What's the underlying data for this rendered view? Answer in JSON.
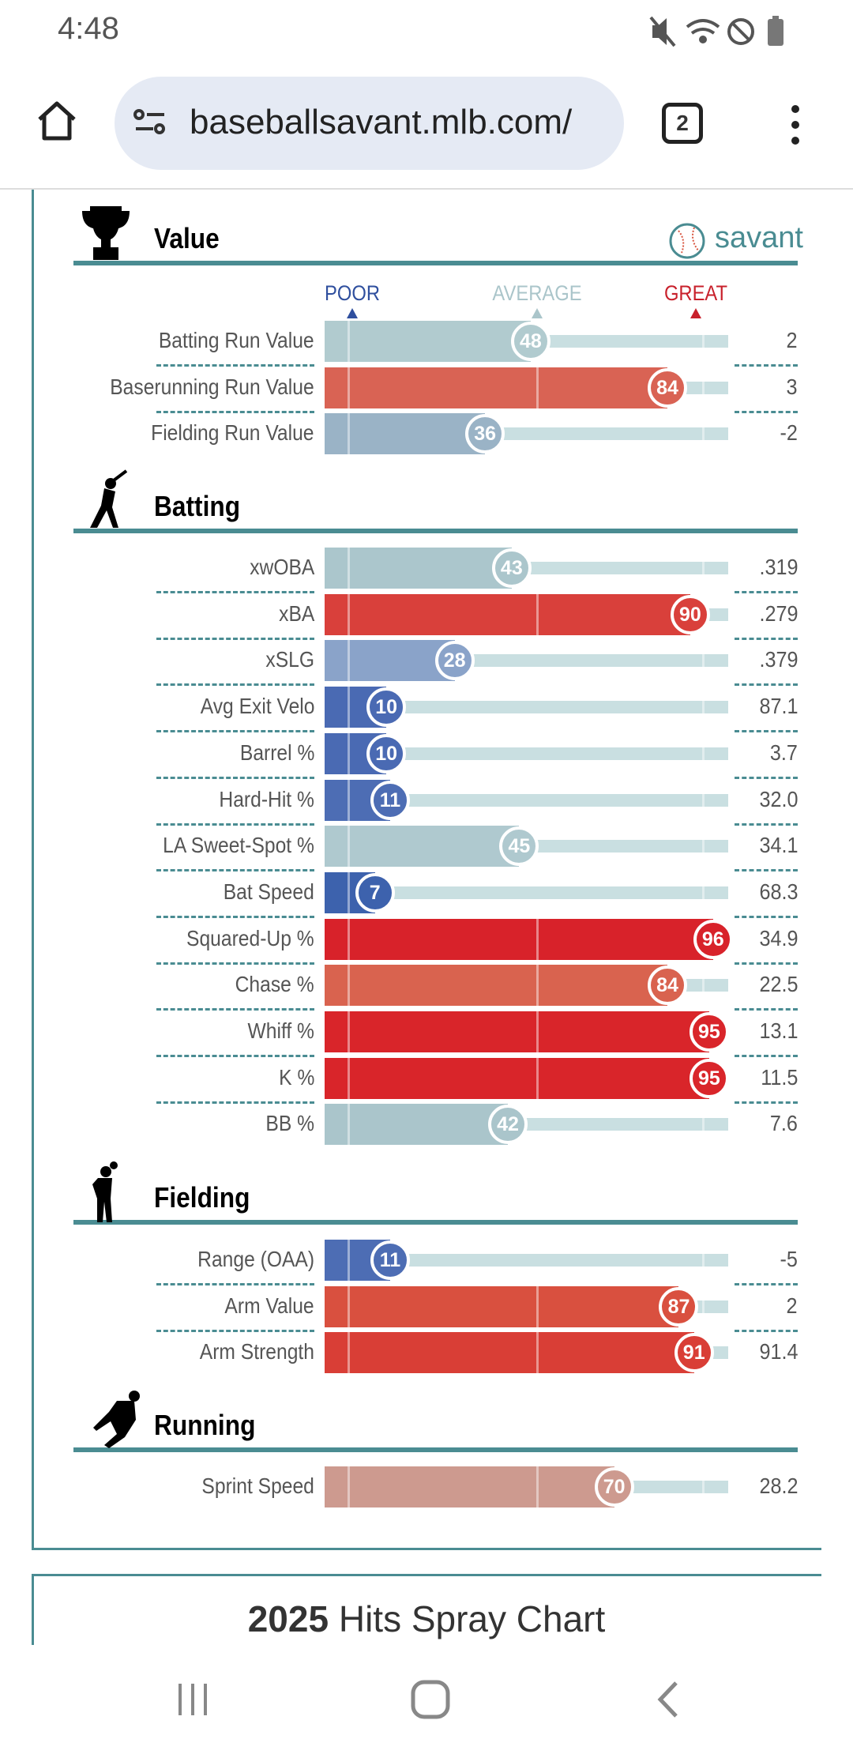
{
  "status_bar": {
    "time": "4:48",
    "icons": [
      "mute-icon",
      "wifi-icon",
      "do-not-disturb-icon",
      "battery-icon"
    ]
  },
  "browser": {
    "url": "baseballsavant.mlb.com/",
    "tab_count": "2"
  },
  "brand": {
    "name": "savant",
    "color": "#4a8c92"
  },
  "scale_labels": {
    "poor": "POOR",
    "average": "AVERAGE",
    "great": "GREAT",
    "poor_color": "#2f4f9e",
    "average_color": "#aac5ca",
    "great_color": "#c8202b"
  },
  "sections": [
    {
      "title": "Value",
      "icon": "trophy-icon",
      "metrics": [
        {
          "label": "Batting Run Value",
          "pct": 48,
          "value": "2",
          "color": "#b1cbcf"
        },
        {
          "label": "Baserunning Run Value",
          "pct": 84,
          "value": "3",
          "color": "#d96354"
        },
        {
          "label": "Fielding Run Value",
          "pct": 36,
          "value": "-2",
          "color": "#9ab3c6"
        }
      ]
    },
    {
      "title": "Batting",
      "icon": "batter-icon",
      "metrics": [
        {
          "label": "xwOBA",
          "pct": 43,
          "value": ".319",
          "color": "#abc6cc"
        },
        {
          "label": "xBA",
          "pct": 90,
          "value": ".279",
          "color": "#d9403b"
        },
        {
          "label": "xSLG",
          "pct": 28,
          "value": ".379",
          "color": "#8aa3c9"
        },
        {
          "label": "Avg Exit Velo",
          "pct": 10,
          "value": "87.1",
          "color": "#4a6ab3"
        },
        {
          "label": "Barrel %",
          "pct": 10,
          "value": "3.7",
          "color": "#4a6ab3"
        },
        {
          "label": "Hard-Hit %",
          "pct": 11,
          "value": "32.0",
          "color": "#4d6db4"
        },
        {
          "label": "LA Sweet-Spot %",
          "pct": 45,
          "value": "34.1",
          "color": "#afc9cf"
        },
        {
          "label": "Bat Speed",
          "pct": 7,
          "value": "68.3",
          "color": "#3d62ad"
        },
        {
          "label": "Squared-Up %",
          "pct": 96,
          "value": "34.9",
          "color": "#d8222a"
        },
        {
          "label": "Chase %",
          "pct": 84,
          "value": "22.5",
          "color": "#d9634f"
        },
        {
          "label": "Whiff %",
          "pct": 95,
          "value": "13.1",
          "color": "#d9252a"
        },
        {
          "label": "K %",
          "pct": 95,
          "value": "11.5",
          "color": "#d9252a"
        },
        {
          "label": "BB %",
          "pct": 42,
          "value": "7.6",
          "color": "#aac5cb"
        }
      ]
    },
    {
      "title": "Fielding",
      "icon": "fielder-icon",
      "metrics": [
        {
          "label": "Range (OAA)",
          "pct": 11,
          "value": "-5",
          "color": "#4d6db4"
        },
        {
          "label": "Arm Value",
          "pct": 87,
          "value": "2",
          "color": "#d9503f"
        },
        {
          "label": "Arm Strength",
          "pct": 91,
          "value": "91.4",
          "color": "#d93e36"
        }
      ]
    },
    {
      "title": "Running",
      "icon": "runner-icon",
      "metrics": [
        {
          "label": "Sprint Speed",
          "pct": 70,
          "value": "28.2",
          "color": "#cd9a8f"
        }
      ]
    }
  ],
  "next_card": {
    "year": "2025",
    "title": "Hits Spray Chart"
  }
}
